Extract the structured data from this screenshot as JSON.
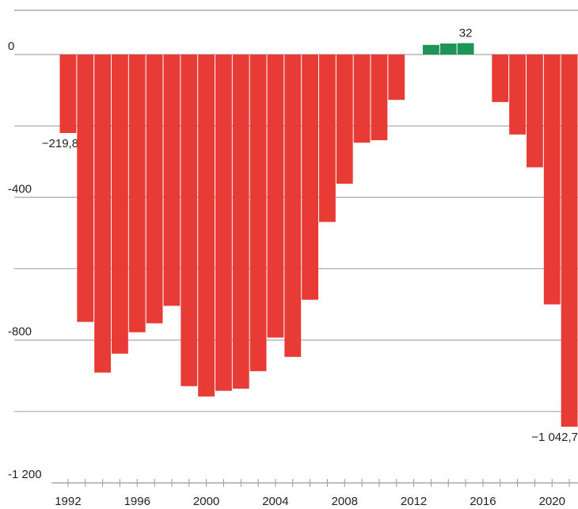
{
  "chart_data": {
    "type": "bar",
    "categories": [
      "1992",
      null,
      null,
      null,
      "1996",
      null,
      null,
      null,
      "2000",
      null,
      null,
      null,
      "2004",
      null,
      null,
      null,
      "2008",
      null,
      null,
      null,
      "2012",
      null,
      null,
      null,
      "2016",
      null,
      null,
      null,
      "2020",
      null
    ],
    "values": [
      -219.8,
      -749,
      -891,
      -838,
      -778,
      -753,
      -704,
      -929,
      -958,
      -942,
      -936,
      -887,
      -793,
      -847,
      -687,
      -469,
      -362,
      -247,
      -240,
      -127,
      0,
      27,
      31,
      32,
      0,
      -133,
      -224,
      -316,
      -700,
      -1042.7
    ],
    "value_labels": [
      "−219,8",
      null,
      null,
      null,
      null,
      null,
      null,
      null,
      null,
      null,
      null,
      null,
      null,
      null,
      null,
      null,
      null,
      null,
      null,
      null,
      null,
      null,
      null,
      "32",
      null,
      null,
      null,
      null,
      null,
      "−1 042,7"
    ],
    "negative_color": "#e83b36",
    "positive_color": "#1e9457",
    "ylim": [
      -1200,
      124
    ],
    "yticks": [
      0,
      -400,
      -800,
      {
        "value": -1200,
        "label": "-1 200"
      }
    ],
    "minor_yticks": [
      -200,
      -600,
      -1000
    ],
    "grid": true
  }
}
